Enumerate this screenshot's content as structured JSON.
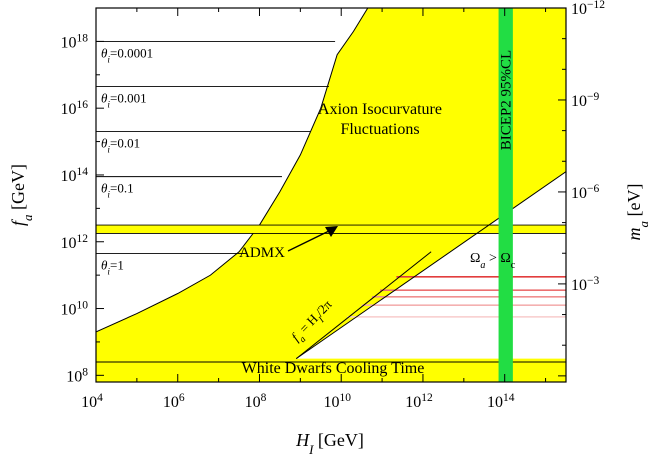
{
  "chart_data": {
    "type": "region",
    "x_scale": "log",
    "x_range_log10": [
      4,
      15.5
    ],
    "y_left_scale": "log",
    "y_left_range_log10": [
      7.8,
      19
    ],
    "y_right_scale": "log",
    "y_right_range_log10_ma_eV": [
      -12,
      0.2
    ],
    "x_axis": {
      "label_main": "H",
      "label_sub": "I",
      "label_unit": " [GeV]",
      "ticks": [
        {
          "exp": 4,
          "text": "10",
          "sup": "4"
        },
        {
          "exp": 6,
          "text": "10",
          "sup": "6"
        },
        {
          "exp": 8,
          "text": "10",
          "sup": "8"
        },
        {
          "exp": 10,
          "text": "10",
          "sup": "10"
        },
        {
          "exp": 12,
          "text": "10",
          "sup": "12"
        },
        {
          "exp": 14,
          "text": "10",
          "sup": "14"
        }
      ]
    },
    "y_left_axis": {
      "label_main": "f",
      "label_sub": "a",
      "label_unit": " [GeV]",
      "ticks": [
        {
          "exp": 8,
          "text": "10",
          "sup": "8"
        },
        {
          "exp": 10,
          "text": "10",
          "sup": "10"
        },
        {
          "exp": 12,
          "text": "10",
          "sup": "12"
        },
        {
          "exp": 14,
          "text": "10",
          "sup": "14"
        },
        {
          "exp": 16,
          "text": "10",
          "sup": "16"
        },
        {
          "exp": 18,
          "text": "10",
          "sup": "18"
        }
      ]
    },
    "y_right_axis": {
      "label_main": "m",
      "label_sub": "a",
      "label_unit": " [eV]",
      "ticks": [
        {
          "exp": -12,
          "text": "10",
          "sup": "−12"
        },
        {
          "exp": -9,
          "text": "10",
          "sup": "−9"
        },
        {
          "exp": -6,
          "text": "10",
          "sup": "−6"
        },
        {
          "exp": -3,
          "text": "10",
          "sup": "−3"
        }
      ]
    },
    "theta_lines": [
      {
        "label": "θi=0.0001",
        "theta": "θ",
        "sub": "i",
        "value": "=0.0001",
        "log_fa": 18.0,
        "log_hi_end": 9.85
      },
      {
        "label": "θi=0.001",
        "theta": "θ",
        "sub": "i",
        "value": "=0.001",
        "log_fa": 16.65,
        "log_hi_end": 9.7
      },
      {
        "label": "θi=0.01",
        "theta": "θ",
        "sub": "i",
        "value": "=0.01",
        "log_fa": 15.3,
        "log_hi_end": 9.25
      },
      {
        "label": "θi=0.1",
        "theta": "θ",
        "sub": "i",
        "value": "=0.1",
        "log_fa": 13.95,
        "log_hi_end": 8.55
      },
      {
        "label": "θi=1",
        "theta": "θ",
        "sub": "i",
        "value": "=1",
        "log_fa": 11.65,
        "log_hi_end": 7.7
      }
    ],
    "dark_matter_boundary": [
      [
        4.0,
        9.3
      ],
      [
        5.0,
        9.85
      ],
      [
        6.0,
        10.45
      ],
      [
        6.8,
        11.0
      ],
      [
        7.5,
        11.7
      ],
      [
        8.0,
        12.5
      ],
      [
        8.5,
        13.5
      ],
      [
        9.0,
        14.6
      ],
      [
        9.5,
        16.0
      ],
      [
        9.9,
        17.6
      ],
      [
        10.3,
        18.3
      ],
      [
        10.65,
        19.0
      ]
    ],
    "fa_equals_HI_line": {
      "label": "fa = HI/2π",
      "from": [
        8.9,
        8.5
      ],
      "to": [
        12.2,
        11.7
      ]
    },
    "isocurvature_bound_line": {
      "from": [
        8.9,
        8.5
      ],
      "to": [
        15.5,
        14.1
      ]
    },
    "admx_band_log_fa": [
      12.25,
      12.5
    ],
    "white_dwarf_line_log_fa": 8.4,
    "bicep2_band_log_HI": [
      13.85,
      14.2
    ],
    "relic_lines": [
      {
        "log_fa": 10.95,
        "color": "#e23d3d"
      },
      {
        "log_fa": 10.55,
        "color": "#ec7070"
      },
      {
        "log_fa": 10.35,
        "color": "#f09090"
      },
      {
        "log_fa": 10.1,
        "color": "#f4b0b0"
      },
      {
        "log_fa": 9.75,
        "color": "#f8cccc"
      }
    ],
    "annotations": {
      "isocurvature_line1": "Axion Isocurvature",
      "isocurvature_line2": "Fluctuations",
      "bicep2": "BICEP2 95%CL",
      "admx": "ADMX",
      "white_dwarfs": "White Dwarfs Cooling Time",
      "omega_gt_a": "Ω",
      "omega_gt_a_sub": "a",
      "omega_gt_mid": " > ",
      "omega_gt_c": "Ω",
      "omega_gt_c_sub": "c",
      "fa_line_a": "f",
      "fa_line_a_sub": "a",
      "fa_line_rest": " = H",
      "fa_line_I_sub": "I",
      "fa_line_tail": "/2π"
    },
    "colors": {
      "excluded": "#ffff00",
      "allowed": "#ffffff",
      "bicep2": "#22dd44",
      "line": "#000000"
    }
  }
}
